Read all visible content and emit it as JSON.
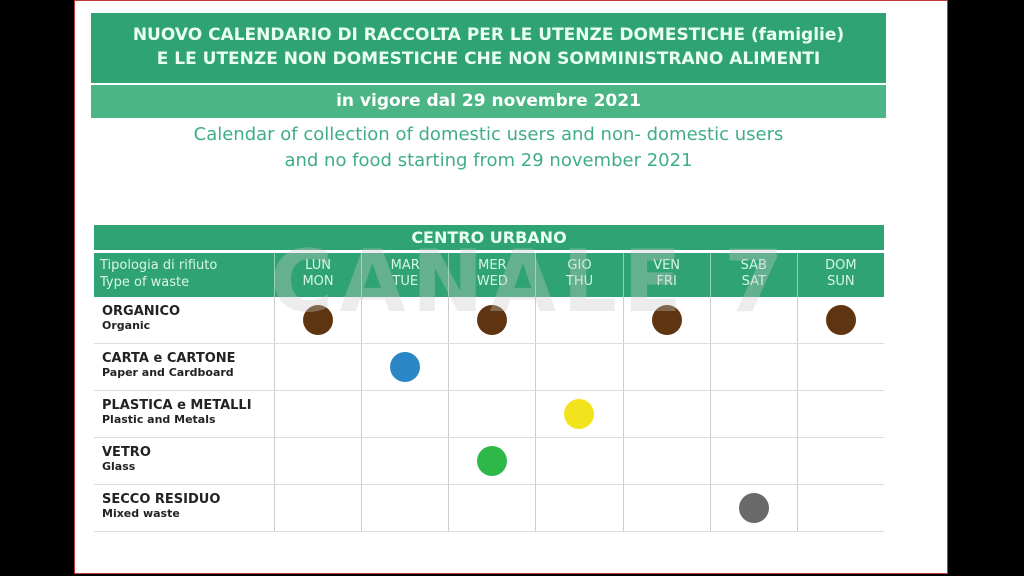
{
  "header": {
    "line1": "NUOVO CALENDARIO DI RACCOLTA PER LE UTENZE DOMESTICHE (famiglie)",
    "line2": "E LE UTENZE NON DOMESTICHE CHE NON SOMMINISTRANO ALIMENTI",
    "effective": "in vigore dal 29 novembre 2021",
    "en1": "Calendar of collection of domestic users and non- domestic users",
    "en2": "and no food starting from 29 november 2021"
  },
  "table": {
    "title": "CENTRO URBANO",
    "label_it": "Tipologia di rifiuto",
    "label_en": "Type of waste",
    "days": [
      {
        "it": "LUN",
        "en": "MON"
      },
      {
        "it": "MAR",
        "en": "TUE"
      },
      {
        "it": "MER",
        "en": "WED"
      },
      {
        "it": "GIO",
        "en": "THU"
      },
      {
        "it": "VEN",
        "en": "FRI"
      },
      {
        "it": "SAB",
        "en": "SAT"
      },
      {
        "it": "DOM",
        "en": "SUN"
      }
    ],
    "rows": [
      {
        "it": "ORGANICO",
        "en": "Organic",
        "color": "#5e3510",
        "days": [
          0,
          2,
          4,
          6
        ]
      },
      {
        "it": "CARTA e CARTONE",
        "en": "Paper and Cardboard",
        "color": "#2b86c5",
        "days": [
          1
        ]
      },
      {
        "it": "PLASTICA e METALLI",
        "en": "Plastic and Metals",
        "color": "#f2e41c",
        "days": [
          3
        ]
      },
      {
        "it": "VETRO",
        "en": "Glass",
        "color": "#2fb84a",
        "days": [
          2
        ]
      },
      {
        "it": "SECCO RESIDUO",
        "en": "Mixed waste",
        "color": "#6a6a6a",
        "days": [
          5
        ]
      }
    ]
  },
  "watermark": "CANALE 7"
}
